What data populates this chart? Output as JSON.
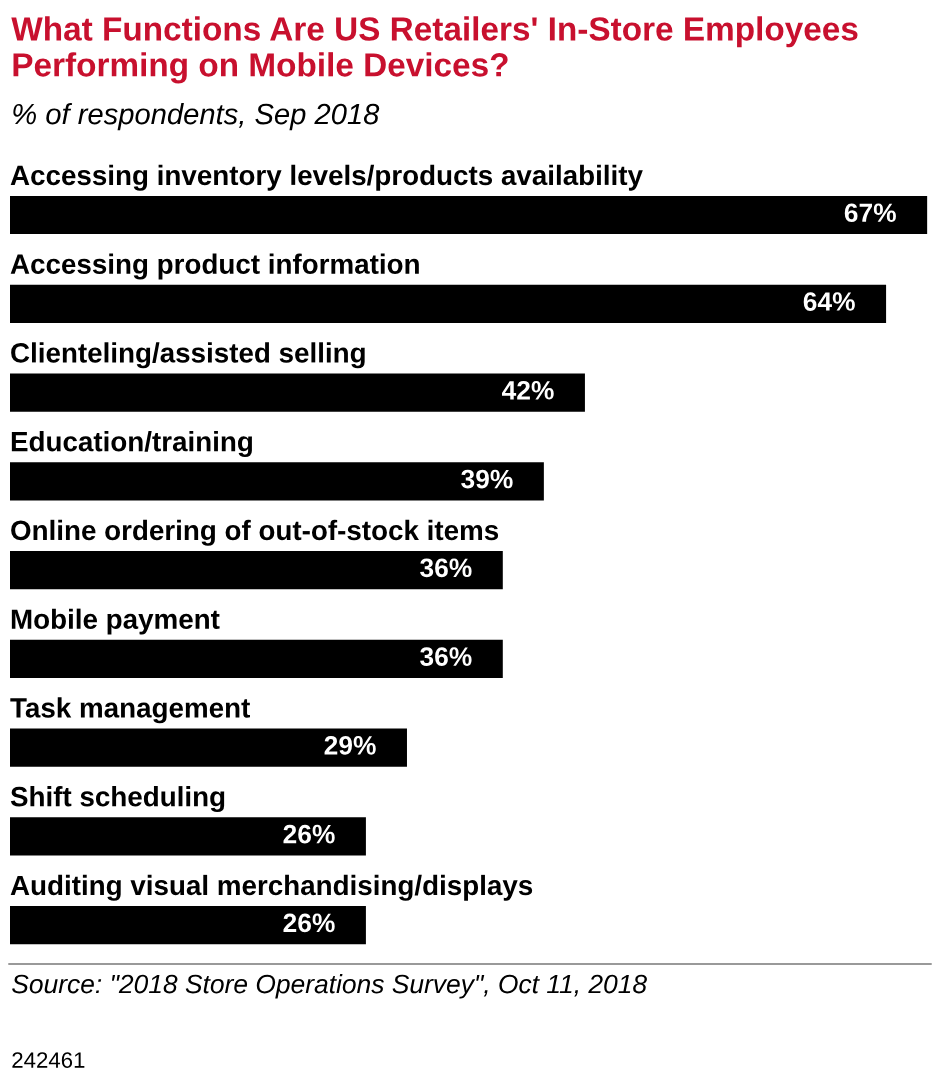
{
  "chart_data": {
    "type": "bar",
    "orientation": "horizontal",
    "title": "What Functions Are US Retailers' In-Store Employees Performing on Mobile Devices?",
    "subtitle": "% of respondents, Sep 2018",
    "categories": [
      "Accessing inventory levels/products availability",
      "Accessing product information",
      "Clienteling/assisted selling",
      "Education/training",
      "Online ordering of out-of-stock items",
      "Mobile payment",
      "Task management",
      "Shift scheduling",
      "Auditing visual merchandising/displays"
    ],
    "values": [
      67,
      64,
      42,
      39,
      36,
      36,
      29,
      26,
      26
    ],
    "value_labels": [
      "67%",
      "64%",
      "42%",
      "39%",
      "36%",
      "36%",
      "29%",
      "26%",
      "26%"
    ],
    "color": "#000000",
    "xlim": [
      0,
      67.5
    ],
    "tick_labels": false,
    "annotations": [
      "Source: \"2018 Store Operations Survey\", Oct 11, 2018",
      "242461"
    ]
  }
}
